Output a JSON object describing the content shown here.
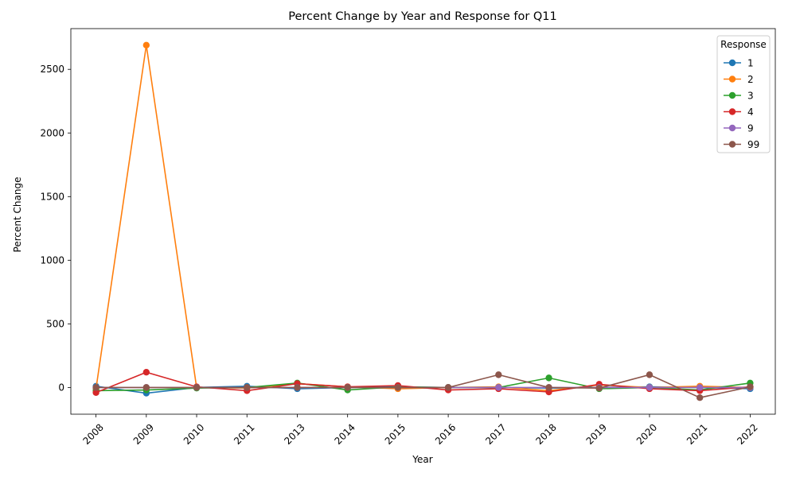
{
  "chart_data": {
    "type": "line",
    "title": "Percent Change by Year and Response for Q11",
    "xlabel": "Year",
    "ylabel": "Percent Change",
    "categories": [
      "2008",
      "2009",
      "2010",
      "2011",
      "2013",
      "2014",
      "2015",
      "2016",
      "2017",
      "2018",
      "2019",
      "2020",
      "2021",
      "2022"
    ],
    "ylim": [
      -210,
      2820
    ],
    "yticks": [
      0,
      500,
      1000,
      1500,
      2000,
      2500
    ],
    "legend": {
      "title": "Response",
      "position": "top-right"
    },
    "series": [
      {
        "name": "1",
        "color": "#1f77b4",
        "values": [
          10,
          -45,
          0,
          10,
          -10,
          0,
          5,
          0,
          0,
          -5,
          0,
          5,
          0,
          -10
        ]
      },
      {
        "name": "2",
        "color": "#ff7f0e",
        "values": [
          -10,
          2690,
          0,
          -5,
          30,
          5,
          -10,
          0,
          5,
          -25,
          20,
          0,
          10,
          0
        ]
      },
      {
        "name": "3",
        "color": "#2ca02c",
        "values": [
          -25,
          -20,
          -5,
          0,
          35,
          -20,
          5,
          0,
          0,
          75,
          -10,
          0,
          -20,
          35
        ]
      },
      {
        "name": "4",
        "color": "#d62728",
        "values": [
          -40,
          120,
          5,
          -25,
          30,
          5,
          15,
          -20,
          -10,
          -35,
          25,
          -10,
          -25,
          5
        ]
      },
      {
        "name": "9",
        "color": "#9467bd",
        "values": [
          0,
          0,
          0,
          0,
          0,
          0,
          0,
          0,
          0,
          0,
          0,
          0,
          0,
          0
        ]
      },
      {
        "name": "99",
        "color": "#8c564b",
        "values": [
          0,
          0,
          0,
          0,
          0,
          0,
          0,
          0,
          100,
          0,
          -5,
          100,
          -80,
          5
        ]
      }
    ]
  }
}
